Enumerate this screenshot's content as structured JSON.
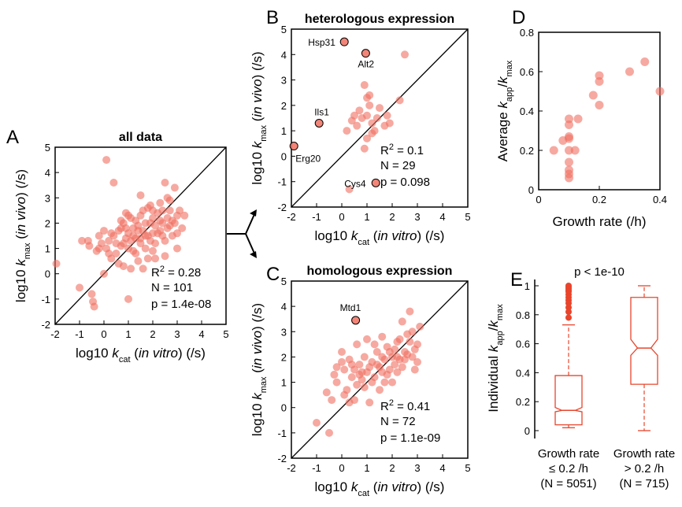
{
  "colors": {
    "point": "#f07060",
    "point_stroke": "#c0392b",
    "box": "#e8452c",
    "axis": "#000000"
  },
  "chart_data": [
    {
      "id": "A",
      "type": "scatter",
      "label": "A",
      "title": "all data",
      "xlabel_parts": [
        "log10 ",
        "k",
        "cat",
        " (",
        "in vitro",
        ") (/s)"
      ],
      "ylabel_parts": [
        "log10 ",
        "k",
        "max",
        " (",
        "in vivo",
        ") (/s)"
      ],
      "xlim": [
        -2,
        5
      ],
      "ylim": [
        -2,
        5
      ],
      "xticks": [
        "-2",
        "-1",
        "0",
        "1",
        "2",
        "3",
        "4",
        "5"
      ],
      "yticks": [
        "-2",
        "-1",
        "0",
        "1",
        "2",
        "3",
        "4",
        "5"
      ],
      "stats": {
        "r2_prefix": "R",
        "r2_sup": "2",
        "r2_value": " = 0.28",
        "n": "N = 101",
        "p": "p = 1.4e-08"
      },
      "identity_line": true,
      "points": [
        [
          -1.95,
          0.4
        ],
        [
          -1.0,
          -0.55
        ],
        [
          -0.9,
          1.3
        ],
        [
          -0.65,
          1.3
        ],
        [
          -0.6,
          1.1
        ],
        [
          -0.5,
          -0.8
        ],
        [
          -0.45,
          -1.1
        ],
        [
          -0.4,
          -1.3
        ],
        [
          -0.3,
          0.9
        ],
        [
          -0.2,
          1.5
        ],
        [
          -0.1,
          1.2
        ],
        [
          0.0,
          1.7
        ],
        [
          0.0,
          0.0
        ],
        [
          0.1,
          1.0
        ],
        [
          0.1,
          4.5
        ],
        [
          0.2,
          1.3
        ],
        [
          0.3,
          1.6
        ],
        [
          0.4,
          3.6
        ],
        [
          0.5,
          1.2
        ],
        [
          0.5,
          0.8
        ],
        [
          0.6,
          1.7
        ],
        [
          0.7,
          1.1
        ],
        [
          0.7,
          1.8
        ],
        [
          0.8,
          2.0
        ],
        [
          0.8,
          0.3
        ],
        [
          0.9,
          1.4
        ],
        [
          0.9,
          1.8
        ],
        [
          1.0,
          1.0
        ],
        [
          1.0,
          1.6
        ],
        [
          1.0,
          -1.0
        ],
        [
          1.1,
          2.2
        ],
        [
          1.2,
          0.9
        ],
        [
          1.2,
          1.8
        ],
        [
          1.3,
          1.4
        ],
        [
          1.3,
          2.1
        ],
        [
          1.4,
          1.9
        ],
        [
          1.4,
          0.5
        ],
        [
          1.5,
          1.2
        ],
        [
          1.5,
          2.3
        ],
        [
          1.6,
          1.7
        ],
        [
          1.6,
          0.2
        ],
        [
          1.7,
          2.0
        ],
        [
          1.7,
          1.0
        ],
        [
          1.8,
          1.5
        ],
        [
          1.8,
          2.6
        ],
        [
          1.9,
          1.3
        ],
        [
          1.9,
          2.0
        ],
        [
          2.0,
          1.6
        ],
        [
          2.0,
          2.2
        ],
        [
          2.1,
          0.6
        ],
        [
          2.1,
          1.9
        ],
        [
          2.2,
          2.4
        ],
        [
          2.3,
          1.7
        ],
        [
          2.3,
          2.8
        ],
        [
          2.4,
          2.0
        ],
        [
          2.5,
          1.3
        ],
        [
          2.5,
          3.6
        ],
        [
          2.6,
          2.2
        ],
        [
          2.7,
          1.9
        ],
        [
          2.7,
          2.5
        ],
        [
          2.8,
          1.5
        ],
        [
          2.9,
          2.0
        ],
        [
          3.0,
          2.3
        ],
        [
          3.0,
          1.0
        ],
        [
          3.1,
          2.5
        ],
        [
          3.2,
          1.8
        ],
        [
          3.3,
          2.3
        ],
        [
          0.9,
          2.4
        ],
        [
          1.1,
          1.3
        ],
        [
          1.3,
          0.8
        ],
        [
          1.5,
          3.1
        ],
        [
          1.7,
          1.5
        ],
        [
          2.0,
          0.9
        ],
        [
          2.2,
          1.6
        ],
        [
          2.4,
          2.5
        ],
        [
          2.6,
          1.8
        ],
        [
          2.8,
          2.1
        ],
        [
          0.3,
          0.6
        ],
        [
          0.6,
          0.4
        ],
        [
          1.9,
          2.7
        ],
        [
          2.9,
          3.4
        ],
        [
          1.2,
          1.5
        ],
        [
          0.4,
          1.5
        ],
        [
          2.7,
          2.9
        ],
        [
          1.6,
          2.5
        ],
        [
          0.8,
          1.2
        ],
        [
          2.1,
          1.2
        ],
        [
          1.4,
          1.7
        ],
        [
          -0.2,
          1.0
        ],
        [
          3.0,
          1.6
        ],
        [
          2.5,
          0.7
        ],
        [
          1.8,
          0.6
        ],
        [
          2.3,
          2.1
        ],
        [
          1.0,
          2.3
        ],
        [
          0.2,
          0.8
        ],
        [
          2.6,
          3.0
        ],
        [
          1.5,
          1.4
        ],
        [
          0.7,
          2.1
        ],
        [
          2.0,
          2.5
        ],
        [
          1.1,
          0.2
        ],
        [
          2.4,
          1.5
        ]
      ]
    },
    {
      "id": "B",
      "type": "scatter",
      "label": "B",
      "title": "heterologous expression",
      "xlabel_parts": [
        "log10 ",
        "k",
        "cat",
        " (",
        "in vitro",
        ") (/s)"
      ],
      "ylabel_parts": [
        "log10 ",
        "k",
        "max",
        " (",
        "in vivo",
        ") (/s)"
      ],
      "xlim": [
        -2,
        5
      ],
      "ylim": [
        -2,
        5
      ],
      "xticks": [
        "-2",
        "-1",
        "0",
        "1",
        "2",
        "3",
        "4",
        "5"
      ],
      "yticks": [
        "-2",
        "-1",
        "0",
        "1",
        "2",
        "3",
        "4",
        "5"
      ],
      "stats": {
        "r2_prefix": "R",
        "r2_sup": "2",
        "r2_value": " = 0.1",
        "n": "N = 29",
        "p": "p = 0.098"
      },
      "identity_line": true,
      "points": [
        [
          0.3,
          -1.3
        ],
        [
          0.9,
          0.3
        ],
        [
          1.0,
          0.7
        ],
        [
          1.2,
          1.3
        ],
        [
          1.3,
          1.0
        ],
        [
          1.0,
          1.6
        ],
        [
          1.1,
          2.0
        ],
        [
          0.8,
          1.5
        ],
        [
          0.5,
          1.6
        ],
        [
          0.2,
          1.0
        ],
        [
          0.6,
          1.2
        ],
        [
          1.4,
          1.5
        ],
        [
          1.7,
          1.2
        ],
        [
          1.8,
          1.6
        ],
        [
          1.9,
          1.3
        ],
        [
          1.0,
          2.3
        ],
        [
          1.1,
          2.4
        ],
        [
          0.7,
          1.8
        ],
        [
          0.9,
          2.8
        ],
        [
          2.3,
          2.2
        ],
        [
          2.5,
          4.0
        ],
        [
          1.5,
          1.9
        ],
        [
          1.2,
          0.9
        ],
        [
          0.4,
          1.4
        ]
      ],
      "highlights": [
        {
          "name": "Hsp31",
          "x": 0.1,
          "y": 4.5
        },
        {
          "name": "Alt2",
          "x": 0.95,
          "y": 4.05
        },
        {
          "name": "Ils1",
          "x": -0.9,
          "y": 1.3
        },
        {
          "name": "Erg20",
          "x": -1.9,
          "y": 0.4
        },
        {
          "name": "Cys4",
          "x": 1.35,
          "y": -1.05
        }
      ]
    },
    {
      "id": "C",
      "type": "scatter",
      "label": "C",
      "title": "homologous expression",
      "xlabel_parts": [
        "log10 ",
        "k",
        "cat",
        " (",
        "in vitro",
        ") (/s)"
      ],
      "ylabel_parts": [
        "log10 ",
        "k",
        "max",
        " (",
        "in vivo",
        ") (/s)"
      ],
      "xlim": [
        -2,
        5
      ],
      "ylim": [
        -2,
        5
      ],
      "xticks": [
        "-2",
        "-1",
        "0",
        "1",
        "2",
        "3",
        "4",
        "5"
      ],
      "yticks": [
        "-2",
        "-1",
        "0",
        "1",
        "2",
        "3",
        "4",
        "5"
      ],
      "stats": {
        "r2_prefix": "R",
        "r2_sup": "2",
        "r2_value": " = 0.41",
        "n": "N = 72",
        "p": "p = 1.1e-09"
      },
      "identity_line": true,
      "points": [
        [
          -1.0,
          -0.6
        ],
        [
          -0.5,
          -1.0
        ],
        [
          -0.6,
          0.6
        ],
        [
          -0.3,
          1.3
        ],
        [
          -0.2,
          1.0
        ],
        [
          0.0,
          1.8
        ],
        [
          0.1,
          1.5
        ],
        [
          0.2,
          0.7
        ],
        [
          0.3,
          1.9
        ],
        [
          0.4,
          1.2
        ],
        [
          0.5,
          1.5
        ],
        [
          0.6,
          0.9
        ],
        [
          0.7,
          1.7
        ],
        [
          0.8,
          1.1
        ],
        [
          0.9,
          2.0
        ],
        [
          1.0,
          1.4
        ],
        [
          1.1,
          0.2
        ],
        [
          1.2,
          1.8
        ],
        [
          1.3,
          1.2
        ],
        [
          1.4,
          2.2
        ],
        [
          1.5,
          1.6
        ],
        [
          1.6,
          2.0
        ],
        [
          1.7,
          1.0
        ],
        [
          1.8,
          2.4
        ],
        [
          1.9,
          1.5
        ],
        [
          2.0,
          2.0
        ],
        [
          2.1,
          1.7
        ],
        [
          2.2,
          2.6
        ],
        [
          2.3,
          1.9
        ],
        [
          2.4,
          3.4
        ],
        [
          2.5,
          2.2
        ],
        [
          2.6,
          2.9
        ],
        [
          2.7,
          3.8
        ],
        [
          2.8,
          2.0
        ],
        [
          2.9,
          2.3
        ],
        [
          3.0,
          2.5
        ],
        [
          -0.4,
          0.3
        ],
        [
          0.0,
          2.2
        ],
        [
          0.3,
          0.2
        ],
        [
          0.6,
          2.5
        ],
        [
          0.8,
          1.4
        ],
        [
          1.0,
          2.7
        ],
        [
          1.2,
          1.0
        ],
        [
          1.4,
          1.7
        ],
        [
          1.6,
          2.8
        ],
        [
          1.8,
          1.3
        ],
        [
          2.0,
          1.0
        ],
        [
          2.2,
          2.0
        ],
        [
          2.4,
          1.6
        ],
        [
          2.6,
          2.1
        ],
        [
          2.8,
          3.0
        ],
        [
          3.0,
          1.8
        ],
        [
          0.1,
          0.5
        ],
        [
          0.5,
          0.3
        ],
        [
          0.9,
          0.8
        ],
        [
          1.3,
          2.5
        ],
        [
          1.7,
          1.9
        ],
        [
          2.1,
          2.3
        ],
        [
          2.5,
          1.9
        ],
        [
          2.9,
          1.5
        ],
        [
          -0.2,
          1.6
        ],
        [
          1.5,
          0.7
        ],
        [
          2.3,
          2.7
        ],
        [
          0.4,
          1.7
        ],
        [
          1.1,
          1.6
        ],
        [
          1.9,
          2.2
        ],
        [
          2.7,
          2.6
        ],
        [
          0.7,
          1.3
        ],
        [
          1.6,
          1.4
        ],
        [
          2.2,
          1.4
        ],
        [
          3.1,
          3.2
        ]
      ],
      "highlights": [
        {
          "name": "Mtd1",
          "x": 0.55,
          "y": 3.45
        }
      ]
    },
    {
      "id": "D",
      "type": "scatter",
      "label": "D",
      "xlabel": "Growth rate (/h)",
      "ylabel_parts": [
        "Average ",
        "k",
        "app",
        "/",
        "k",
        "max"
      ],
      "xlim": [
        0,
        0.4
      ],
      "ylim": [
        0,
        0.8
      ],
      "xticks": [
        "0",
        "0.2",
        "0.4"
      ],
      "yticks": [
        "0",
        "0.2",
        "0.4",
        "0.6",
        "0.8"
      ],
      "points": [
        [
          0.05,
          0.2
        ],
        [
          0.08,
          0.25
        ],
        [
          0.1,
          0.36
        ],
        [
          0.1,
          0.33
        ],
        [
          0.1,
          0.27
        ],
        [
          0.1,
          0.26
        ],
        [
          0.1,
          0.2
        ],
        [
          0.1,
          0.14
        ],
        [
          0.1,
          0.1
        ],
        [
          0.1,
          0.08
        ],
        [
          0.1,
          0.06
        ],
        [
          0.12,
          0.2
        ],
        [
          0.13,
          0.36
        ],
        [
          0.18,
          0.48
        ],
        [
          0.2,
          0.58
        ],
        [
          0.2,
          0.55
        ],
        [
          0.2,
          0.43
        ],
        [
          0.3,
          0.6
        ],
        [
          0.35,
          0.65
        ],
        [
          0.4,
          0.5
        ]
      ]
    },
    {
      "id": "E",
      "type": "box",
      "label": "E",
      "title": "p < 1e-10",
      "ylabel_parts": [
        "Individual ",
        "k",
        "app",
        "/",
        "k",
        "max"
      ],
      "ylim": [
        0,
        1
      ],
      "yticks": [
        "0",
        "0.2",
        "0.4",
        "0.6",
        "0.8",
        "1"
      ],
      "categories": [
        {
          "line1": "Growth rate",
          "line2": "≤ 0.2 /h",
          "line3": "(N = 5051)"
        },
        {
          "line1": "Growth rate",
          "line2": "> 0.2 /h",
          "line3": "(N = 715)"
        }
      ],
      "boxes": [
        {
          "min": 0.02,
          "q1": 0.04,
          "median": 0.14,
          "q3": 0.38,
          "max": 0.73,
          "notch_lo": 0.13,
          "notch_hi": 0.16,
          "outliers": [
            0.78,
            0.82,
            0.85,
            0.88,
            0.9,
            0.92,
            0.94,
            0.96,
            0.97,
            0.98,
            0.99,
            1.0
          ]
        },
        {
          "min": 0.0,
          "q1": 0.32,
          "median": 0.57,
          "q3": 0.92,
          "max": 1.0,
          "notch_lo": 0.52,
          "notch_hi": 0.63,
          "outliers": []
        }
      ]
    }
  ]
}
